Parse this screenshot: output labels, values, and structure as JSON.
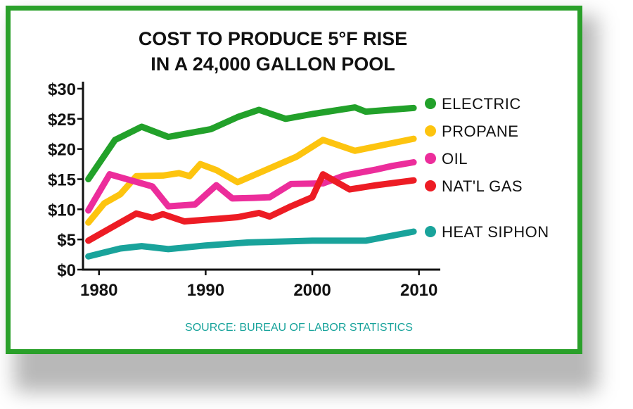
{
  "chart_data": {
    "type": "line",
    "title_lines": [
      "COST TO PRODUCE 5°F RISE",
      "IN A 24,000 GALLON POOL"
    ],
    "source": "SOURCE: BUREAU OF LABOR STATISTICS",
    "xlim": [
      1978.5,
      2012
    ],
    "ylim": [
      0,
      30
    ],
    "xticks": [
      1980,
      1990,
      2000,
      2010
    ],
    "xtick_labels": [
      "1980",
      "1990",
      "2000",
      "2010"
    ],
    "yticks": [
      0,
      5,
      10,
      15,
      20,
      25,
      30
    ],
    "ytick_labels": [
      "$0",
      "$5",
      "$10",
      "$15",
      "$20",
      "$25",
      "$30"
    ],
    "legend_placement": "right",
    "series": [
      {
        "name": "ELECTRIC",
        "color": "#22a12a",
        "points": [
          [
            1979,
            15
          ],
          [
            1981.5,
            21.5
          ],
          [
            1984,
            23.7
          ],
          [
            1986.5,
            22
          ],
          [
            1990.5,
            23.3
          ],
          [
            1993,
            25.3
          ],
          [
            1995,
            26.5
          ],
          [
            1997.5,
            25
          ],
          [
            2000,
            25.8
          ],
          [
            2004,
            26.9
          ],
          [
            2005,
            26.2
          ],
          [
            2009.5,
            26.8
          ]
        ]
      },
      {
        "name": "PROPANE",
        "color": "#fdc40f",
        "points": [
          [
            1979,
            7.8
          ],
          [
            1980.5,
            11
          ],
          [
            1982,
            12.5
          ],
          [
            1983.5,
            15.5
          ],
          [
            1986,
            15.6
          ],
          [
            1987.5,
            16
          ],
          [
            1988.5,
            15.5
          ],
          [
            1989.5,
            17.5
          ],
          [
            1991,
            16.5
          ],
          [
            1993,
            14.5
          ],
          [
            1996,
            16.8
          ],
          [
            1998.5,
            18.7
          ],
          [
            2001,
            21.5
          ],
          [
            2004,
            19.7
          ],
          [
            2009.5,
            21.7
          ]
        ]
      },
      {
        "name": "OIL",
        "color": "#ec2d9b",
        "points": [
          [
            1979,
            9.8
          ],
          [
            1981,
            15.8
          ],
          [
            1983,
            14.8
          ],
          [
            1985,
            13.8
          ],
          [
            1986.5,
            10.5
          ],
          [
            1989,
            10.8
          ],
          [
            1991,
            14
          ],
          [
            1992.5,
            11.8
          ],
          [
            1994.5,
            11.9
          ],
          [
            1996,
            12
          ],
          [
            1998,
            14.2
          ],
          [
            2001,
            14.3
          ],
          [
            2003,
            15.6
          ],
          [
            2006,
            16.6
          ],
          [
            2007.5,
            17.2
          ],
          [
            2009.5,
            17.8
          ]
        ]
      },
      {
        "name": "NAT'L GAS",
        "color": "#ed1c24",
        "points": [
          [
            1979,
            4.8
          ],
          [
            1981,
            6.8
          ],
          [
            1983.5,
            9.3
          ],
          [
            1985,
            8.6
          ],
          [
            1986,
            9.2
          ],
          [
            1988,
            8
          ],
          [
            1991,
            8.4
          ],
          [
            1993,
            8.7
          ],
          [
            1995,
            9.4
          ],
          [
            1996,
            8.8
          ],
          [
            1998,
            10.5
          ],
          [
            2000,
            12
          ],
          [
            2001,
            15.8
          ],
          [
            2003.5,
            13.3
          ],
          [
            2006,
            14
          ],
          [
            2009.5,
            14.8
          ]
        ]
      },
      {
        "name": "HEAT SIPHON",
        "color": "#19a39b",
        "points": [
          [
            1979,
            2.2
          ],
          [
            1982,
            3.5
          ],
          [
            1984,
            3.9
          ],
          [
            1986.5,
            3.4
          ],
          [
            1990,
            4
          ],
          [
            1994,
            4.5
          ],
          [
            2000,
            4.8
          ],
          [
            2005,
            4.8
          ],
          [
            2009.5,
            6.3
          ]
        ]
      }
    ]
  }
}
